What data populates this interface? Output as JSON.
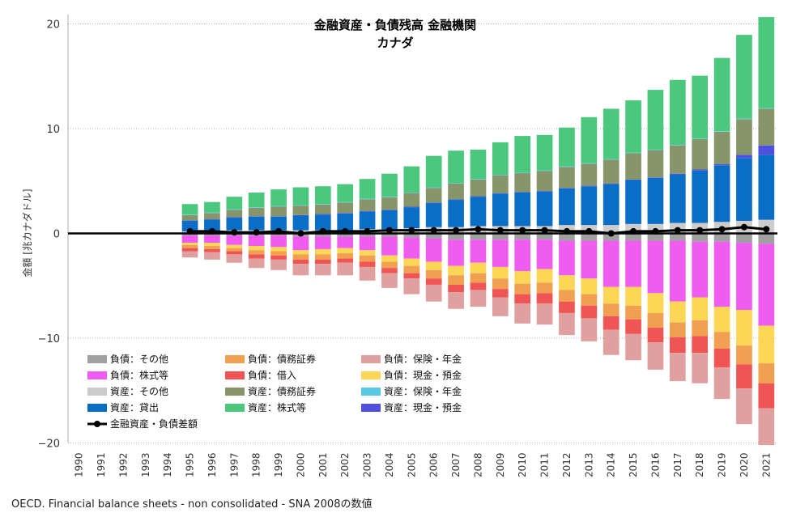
{
  "chart_data": {
    "type": "bar",
    "title": "金融資産・負債残高 金融機関",
    "subtitle": "カナダ",
    "ylabel": "金額 [兆カナダドル]",
    "xlabel": "",
    "ylim": [
      -20,
      20
    ],
    "yticks": [
      -20,
      -10,
      0,
      10,
      20
    ],
    "grid": true,
    "legend_position": "bottom-left",
    "categories": [
      "1990",
      "1991",
      "1992",
      "1993",
      "1994",
      "1995",
      "1996",
      "1997",
      "1998",
      "1999",
      "2000",
      "2001",
      "2002",
      "2003",
      "2004",
      "2005",
      "2006",
      "2007",
      "2008",
      "2009",
      "2010",
      "2011",
      "2012",
      "2013",
      "2014",
      "2015",
      "2016",
      "2017",
      "2018",
      "2019",
      "2020",
      "2021"
    ],
    "series": [
      {
        "name": "負債：その他",
        "color": "#a0a0a0",
        "stack": "liab",
        "values": [
          null,
          null,
          null,
          null,
          null,
          -0.2,
          -0.2,
          -0.2,
          -0.2,
          -0.2,
          -0.3,
          -0.3,
          -0.3,
          -0.3,
          -0.3,
          -0.4,
          -0.5,
          -0.6,
          -0.6,
          -0.6,
          -0.6,
          -0.6,
          -0.7,
          -0.7,
          -0.7,
          -0.7,
          -0.7,
          -0.7,
          -0.8,
          -0.8,
          -0.9,
          -1.0
        ]
      },
      {
        "name": "負債：株式等",
        "color": "#f05cf0",
        "stack": "liab",
        "values": [
          null,
          null,
          null,
          null,
          null,
          -0.7,
          -0.7,
          -0.9,
          -1.0,
          -1.1,
          -1.3,
          -1.2,
          -1.1,
          -1.3,
          -1.8,
          -2.0,
          -2.2,
          -2.5,
          -2.2,
          -2.6,
          -3.0,
          -2.8,
          -3.3,
          -3.6,
          -4.4,
          -4.4,
          -5.0,
          -5.8,
          -5.3,
          -6.2,
          -6.4,
          -7.8
        ]
      },
      {
        "name": "負債：現金・預金",
        "color": "#fcd655",
        "stack": "liab",
        "values": [
          null,
          null,
          null,
          null,
          null,
          -0.2,
          -0.3,
          -0.3,
          -0.4,
          -0.4,
          -0.4,
          -0.5,
          -0.5,
          -0.5,
          -0.6,
          -0.7,
          -0.8,
          -0.9,
          -1.0,
          -1.1,
          -1.2,
          -1.3,
          -1.4,
          -1.5,
          -1.6,
          -1.8,
          -1.9,
          -2.0,
          -2.2,
          -2.4,
          -3.4,
          -3.6
        ]
      },
      {
        "name": "負債：債務証券",
        "color": "#f0a050",
        "stack": "liab",
        "values": [
          null,
          null,
          null,
          null,
          null,
          -0.3,
          -0.3,
          -0.3,
          -0.4,
          -0.4,
          -0.5,
          -0.5,
          -0.5,
          -0.6,
          -0.6,
          -0.7,
          -0.8,
          -0.9,
          -0.9,
          -1.0,
          -1.0,
          -1.0,
          -1.1,
          -1.1,
          -1.2,
          -1.3,
          -1.4,
          -1.4,
          -1.5,
          -1.6,
          -1.8,
          -1.9
        ]
      },
      {
        "name": "負債：借入",
        "color": "#f05555",
        "stack": "liab",
        "values": [
          null,
          null,
          null,
          null,
          null,
          -0.3,
          -0.3,
          -0.3,
          -0.4,
          -0.4,
          -0.4,
          -0.4,
          -0.4,
          -0.5,
          -0.5,
          -0.5,
          -0.6,
          -0.7,
          -0.7,
          -0.8,
          -0.9,
          -1.0,
          -1.1,
          -1.2,
          -1.3,
          -1.4,
          -1.4,
          -1.5,
          -1.6,
          -1.8,
          -2.3,
          -2.4
        ]
      },
      {
        "name": "負債：保険・年金",
        "color": "#e0a0a0",
        "stack": "liab",
        "values": [
          null,
          null,
          null,
          null,
          null,
          -0.6,
          -0.7,
          -0.8,
          -0.9,
          -1.0,
          -1.1,
          -1.1,
          -1.2,
          -1.3,
          -1.4,
          -1.5,
          -1.6,
          -1.6,
          -1.6,
          -1.8,
          -1.9,
          -2.0,
          -2.1,
          -2.2,
          -2.4,
          -2.5,
          -2.6,
          -2.7,
          -2.9,
          -3.0,
          -3.4,
          -3.5
        ]
      },
      {
        "name": "資産：その他",
        "color": "#cccccc",
        "stack": "asset",
        "values": [
          null,
          null,
          null,
          null,
          null,
          0.2,
          0.2,
          0.3,
          0.3,
          0.3,
          0.3,
          0.3,
          0.3,
          0.4,
          0.4,
          0.5,
          0.6,
          0.6,
          0.7,
          0.7,
          0.7,
          0.7,
          0.8,
          0.8,
          0.8,
          0.9,
          0.9,
          1.0,
          1.0,
          1.1,
          1.2,
          1.3
        ]
      },
      {
        "name": "資産：貸出",
        "color": "#0a6dc6",
        "stack": "asset",
        "values": [
          null,
          null,
          null,
          null,
          null,
          1.0,
          1.1,
          1.2,
          1.3,
          1.3,
          1.4,
          1.5,
          1.6,
          1.7,
          1.8,
          2.0,
          2.3,
          2.6,
          2.8,
          3.1,
          3.2,
          3.3,
          3.5,
          3.7,
          3.9,
          4.2,
          4.4,
          4.6,
          5.0,
          5.4,
          6.0,
          6.2
        ]
      },
      {
        "name": "資産：現金・預金",
        "color": "#5050e0",
        "stack": "asset",
        "values": [
          null,
          null,
          null,
          null,
          null,
          0.05,
          0.05,
          0.05,
          0.05,
          0.05,
          0.05,
          0.05,
          0.05,
          0.05,
          0.05,
          0.05,
          0.05,
          0.05,
          0.05,
          0.05,
          0.05,
          0.05,
          0.05,
          0.05,
          0.05,
          0.05,
          0.05,
          0.1,
          0.1,
          0.1,
          0.3,
          0.9
        ]
      },
      {
        "name": "資産：債務証券",
        "color": "#87966a",
        "stack": "asset",
        "values": [
          null,
          null,
          null,
          null,
          null,
          0.5,
          0.6,
          0.7,
          0.8,
          0.9,
          0.9,
          0.9,
          1.0,
          1.1,
          1.2,
          1.3,
          1.4,
          1.5,
          1.6,
          1.7,
          1.8,
          1.9,
          2.0,
          2.1,
          2.3,
          2.5,
          2.6,
          2.7,
          2.9,
          3.1,
          3.4,
          3.5
        ]
      },
      {
        "name": "資産：保険・年金",
        "color": "#58c8e6",
        "stack": "asset",
        "values": [
          null,
          null,
          null,
          null,
          null,
          0.05,
          0.05,
          0.05,
          0.05,
          0.05,
          0.05,
          0.05,
          0.05,
          0.05,
          0.05,
          0.05,
          0.05,
          0.05,
          0.05,
          0.05,
          0.05,
          0.05,
          0.05,
          0.05,
          0.05,
          0.05,
          0.05,
          0.05,
          0.05,
          0.05,
          0.05,
          0.05
        ]
      },
      {
        "name": "資産：株式等",
        "color": "#4cc87e",
        "stack": "asset",
        "values": [
          null,
          null,
          null,
          null,
          null,
          1.0,
          1.0,
          1.2,
          1.4,
          1.6,
          1.7,
          1.7,
          1.7,
          1.9,
          2.2,
          2.5,
          3.0,
          3.1,
          2.8,
          3.1,
          3.5,
          3.4,
          3.7,
          4.4,
          4.8,
          5.0,
          5.7,
          6.2,
          6.0,
          7.0,
          8.0,
          8.7
        ]
      }
    ],
    "net_line": {
      "name": "金融資産・負債差額",
      "color": "#000000",
      "values": [
        null,
        null,
        null,
        null,
        null,
        0.2,
        0.2,
        0.1,
        0.1,
        0.2,
        0.0,
        0.2,
        0.2,
        0.2,
        0.3,
        0.3,
        0.3,
        0.3,
        0.4,
        0.3,
        0.3,
        0.3,
        0.2,
        0.2,
        0.0,
        0.2,
        0.2,
        0.3,
        0.3,
        0.4,
        0.6,
        0.4
      ]
    },
    "legend": [
      {
        "label": "負債：その他",
        "color": "#a0a0a0"
      },
      {
        "label": "負債：債務証券",
        "color": "#f0a050"
      },
      {
        "label": "負債：保険・年金",
        "color": "#e0a0a0"
      },
      {
        "label": "負債：株式等",
        "color": "#f05cf0"
      },
      {
        "label": "負債：借入",
        "color": "#f05555"
      },
      {
        "label": "負債：現金・預金",
        "color": "#fcd655"
      },
      {
        "label": "資産：その他",
        "color": "#cccccc"
      },
      {
        "label": "資産：債務証券",
        "color": "#87966a"
      },
      {
        "label": "資産：保険・年金",
        "color": "#58c8e6"
      },
      {
        "label": "資産：貸出",
        "color": "#0a6dc6"
      },
      {
        "label": "資産：株式等",
        "color": "#4cc87e"
      },
      {
        "label": "資産：現金・預金",
        "color": "#5050e0"
      },
      {
        "label": "金融資産・負債差額",
        "color": "#000000",
        "line": true
      }
    ]
  },
  "source": "OECD. Financial balance sheets - non consolidated - SNA 2008の数値"
}
